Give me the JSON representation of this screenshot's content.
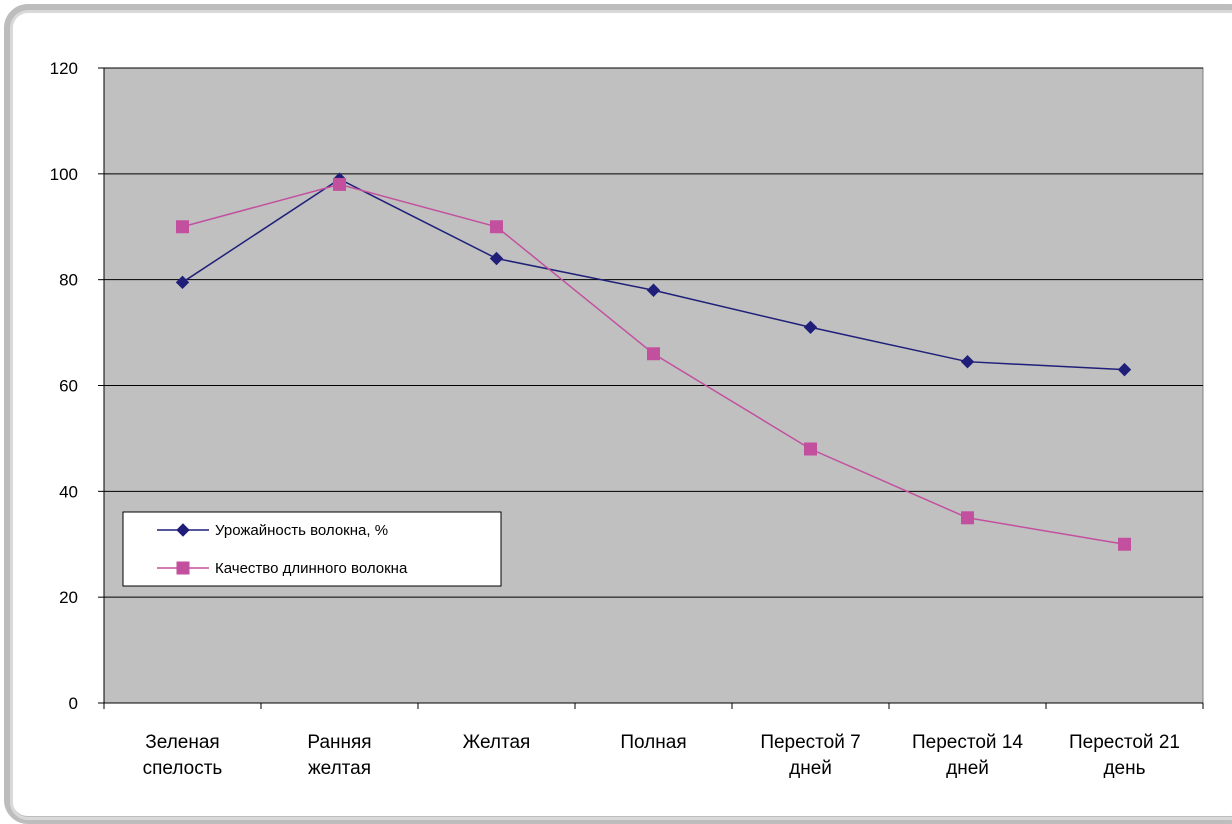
{
  "chart_data": {
    "type": "line",
    "categories": [
      [
        "Зеленая",
        "спелость"
      ],
      [
        "Ранняя",
        "желтая"
      ],
      [
        "Желтая"
      ],
      [
        "Полная"
      ],
      [
        "Перестой 7",
        "дней"
      ],
      [
        "Перестой 14",
        "дней"
      ],
      [
        "Перестой 21",
        "день"
      ]
    ],
    "series": [
      {
        "name": "Урожайность волокна, %",
        "values": [
          79.5,
          99,
          84,
          78,
          71,
          64.5,
          63
        ],
        "color": "#1f1f7a",
        "marker": "diamond"
      },
      {
        "name": "Качество длинного волокна",
        "values": [
          90,
          98,
          90,
          66,
          48,
          35,
          30
        ],
        "color": "#c3509f",
        "marker": "square"
      }
    ],
    "ylim": [
      0,
      120
    ],
    "yticks": [
      0,
      20,
      40,
      60,
      80,
      100,
      120
    ],
    "grid": true,
    "plot_background": "#c0c0c0",
    "legend_position": "lower-left",
    "title": "",
    "xlabel": "",
    "ylabel": ""
  }
}
